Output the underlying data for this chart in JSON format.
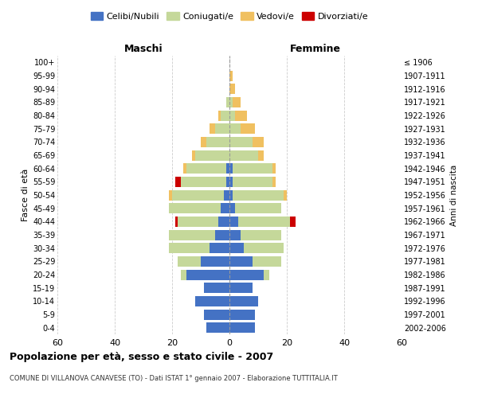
{
  "age_groups": [
    "0-4",
    "5-9",
    "10-14",
    "15-19",
    "20-24",
    "25-29",
    "30-34",
    "35-39",
    "40-44",
    "45-49",
    "50-54",
    "55-59",
    "60-64",
    "65-69",
    "70-74",
    "75-79",
    "80-84",
    "85-89",
    "90-94",
    "95-99",
    "100+"
  ],
  "birth_years": [
    "2002-2006",
    "1997-2001",
    "1992-1996",
    "1987-1991",
    "1982-1986",
    "1977-1981",
    "1972-1976",
    "1967-1971",
    "1962-1966",
    "1957-1961",
    "1952-1956",
    "1947-1951",
    "1942-1946",
    "1937-1941",
    "1932-1936",
    "1927-1931",
    "1922-1926",
    "1917-1921",
    "1912-1916",
    "1907-1911",
    "≤ 1906"
  ],
  "maschi": {
    "celibi": [
      8,
      9,
      12,
      9,
      15,
      10,
      7,
      5,
      4,
      3,
      2,
      1,
      1,
      0,
      0,
      0,
      0,
      0,
      0,
      0,
      0
    ],
    "coniugati": [
      0,
      0,
      0,
      0,
      2,
      8,
      14,
      16,
      14,
      18,
      18,
      16,
      14,
      12,
      8,
      5,
      3,
      1,
      0,
      0,
      0
    ],
    "vedovi": [
      0,
      0,
      0,
      0,
      0,
      0,
      0,
      0,
      0,
      0,
      1,
      0,
      1,
      1,
      2,
      2,
      1,
      0,
      0,
      0,
      0
    ],
    "divorziati": [
      0,
      0,
      0,
      0,
      0,
      0,
      0,
      0,
      1,
      0,
      0,
      2,
      0,
      0,
      0,
      0,
      0,
      0,
      0,
      0,
      0
    ]
  },
  "femmine": {
    "nubili": [
      9,
      9,
      10,
      8,
      12,
      8,
      5,
      4,
      3,
      2,
      1,
      1,
      1,
      0,
      0,
      0,
      0,
      0,
      0,
      0,
      0
    ],
    "coniugate": [
      0,
      0,
      0,
      0,
      2,
      10,
      14,
      14,
      18,
      16,
      18,
      14,
      14,
      10,
      8,
      4,
      2,
      1,
      0,
      0,
      0
    ],
    "vedove": [
      0,
      0,
      0,
      0,
      0,
      0,
      0,
      0,
      0,
      0,
      1,
      1,
      1,
      2,
      4,
      5,
      4,
      3,
      2,
      1,
      0
    ],
    "divorziate": [
      0,
      0,
      0,
      0,
      0,
      0,
      0,
      0,
      2,
      0,
      0,
      0,
      0,
      0,
      0,
      0,
      0,
      0,
      0,
      0,
      0
    ]
  },
  "colors": {
    "celibi_nubili": "#4472C4",
    "coniugati": "#C5D89A",
    "vedovi": "#F0C060",
    "divorziati": "#CC0000"
  },
  "xlim": 60,
  "title": "Popolazione per età, sesso e stato civile - 2007",
  "subtitle": "COMUNE DI VILLANOVA CANAVESE (TO) - Dati ISTAT 1° gennaio 2007 - Elaborazione TUTTITALIA.IT",
  "ylabel": "Fasce di età",
  "ylabel_right": "Anni di nascita",
  "xlabel_left": "Maschi",
  "xlabel_right": "Femmine",
  "background_color": "#ffffff",
  "grid_color": "#cccccc"
}
